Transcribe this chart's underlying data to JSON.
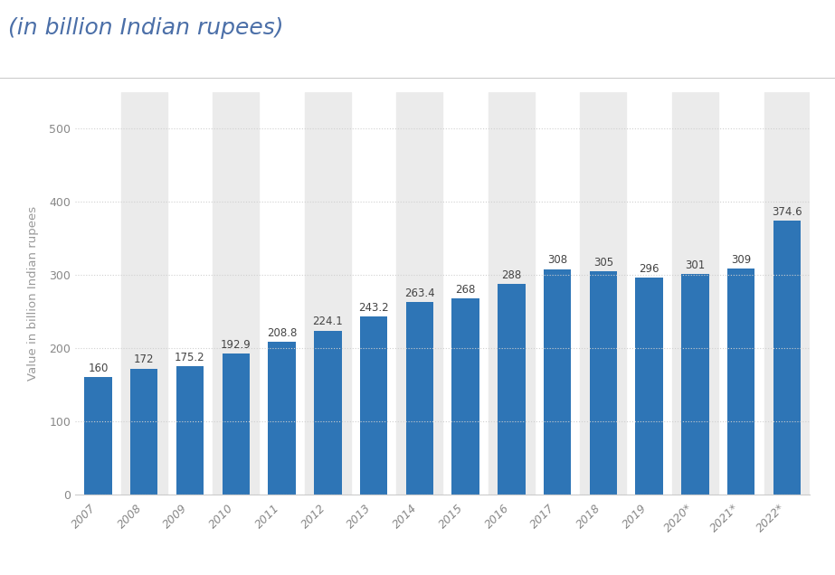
{
  "title": "(in billion Indian rupees)",
  "ylabel": "Value in billion Indian rupees",
  "categories": [
    "2007",
    "2008",
    "2009",
    "2010",
    "2011",
    "2012",
    "2013",
    "2014",
    "2015",
    "2016",
    "2017",
    "2018",
    "2019",
    "2020*",
    "2021*",
    "2022*"
  ],
  "values": [
    160,
    172,
    175.2,
    192.9,
    208.8,
    224.1,
    243.2,
    263.4,
    268,
    288,
    308,
    305,
    296,
    301,
    309,
    374.6
  ],
  "bar_color": "#2e75b6",
  "ylim": [
    0,
    550
  ],
  "yticks": [
    0,
    100,
    200,
    300,
    400,
    500
  ],
  "background_color": "#ffffff",
  "plot_bg_color": "#ffffff",
  "col_band_color": "#ebebeb",
  "title_color": "#4b6fa8",
  "title_fontsize": 18,
  "ylabel_fontsize": 9.5,
  "ylabel_color": "#999999",
  "tick_label_fontsize": 9,
  "value_label_fontsize": 8.5,
  "value_label_color": "#444444",
  "grid_color": "#d0d0d0",
  "grid_linewidth": 0.8,
  "grid_linestyle": "dotted",
  "bar_width": 0.6
}
